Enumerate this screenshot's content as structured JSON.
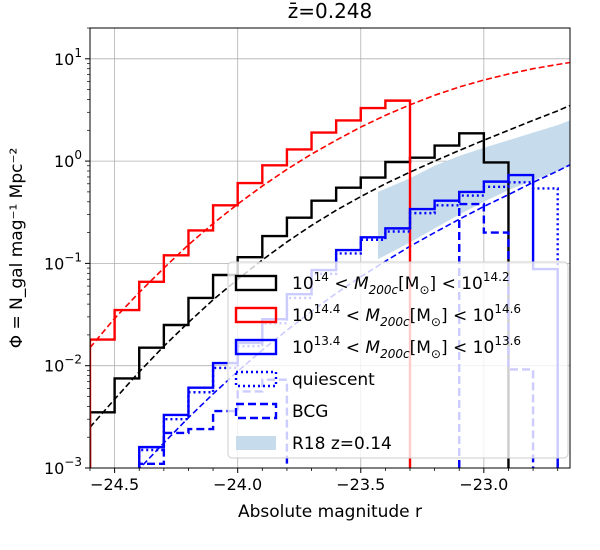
{
  "chart_data": {
    "type": "line",
    "title": "z̄=0.248",
    "xlabel": "Absolute magnitude r",
    "ylabel": "Φ = N_gal mag⁻¹ Mpc⁻²",
    "xlim": [
      -24.6,
      -22.65
    ],
    "ylim": [
      0.001,
      20
    ],
    "yscale": "log",
    "grid": true,
    "legend_position": "lower-right",
    "x_ticks": [
      {
        "value": -24.5,
        "label": "−24.5"
      },
      {
        "value": -24.0,
        "label": "−24.0"
      },
      {
        "value": -23.5,
        "label": "−23.5"
      },
      {
        "value": -23.0,
        "label": "−23.0"
      }
    ],
    "y_ticks": [
      {
        "value": 0.001,
        "base": "10",
        "exp": "−3"
      },
      {
        "value": 0.01,
        "base": "10",
        "exp": "−2"
      },
      {
        "value": 0.1,
        "base": "10",
        "exp": "−1"
      },
      {
        "value": 1,
        "base": "10",
        "exp": "0"
      },
      {
        "value": 10,
        "base": "10",
        "exp": "1"
      }
    ],
    "bin_edges": [
      -24.6,
      -24.5,
      -24.4,
      -24.3,
      -24.2,
      -24.1,
      -24.0,
      -23.9,
      -23.8,
      -23.7,
      -23.6,
      -23.5,
      -23.4,
      -23.3,
      -23.2,
      -23.1,
      -23.0,
      -22.9,
      -22.8,
      -22.7
    ],
    "series": [
      {
        "name": "10^14 < M_200c[M_⊙] < 10^14.2",
        "legend_label": {
          "pre": "10",
          "sup1": "14",
          "mid": " < M",
          "sub": "200c",
          "br": "[M",
          "sun": "⊙",
          "post": "] < 10",
          "sup2": "14.2"
        },
        "color": "#000000",
        "style": "solid-hist",
        "values": [
          0.0035,
          0.0075,
          0.015,
          0.025,
          0.046,
          0.077,
          0.115,
          0.185,
          0.28,
          0.41,
          0.55,
          0.69,
          0.98,
          1.08,
          1.42,
          1.87,
          0.97,
          null,
          null
        ],
        "drop_edge": -22.9
      },
      {
        "name": "10^14.4 < M_200c[M_⊙] < 10^14.6",
        "legend_label": {
          "pre": "10",
          "sup1": "14.4",
          "mid": " < M",
          "sub": "200c",
          "br": "[M",
          "sun": "⊙",
          "post": "] < 10",
          "sup2": "14.6"
        },
        "color": "#ff0000",
        "style": "solid-hist",
        "values": [
          0.018,
          0.035,
          0.066,
          0.12,
          0.21,
          0.37,
          0.61,
          0.91,
          1.3,
          1.9,
          2.5,
          3.3,
          3.9,
          null,
          null,
          null,
          null,
          null,
          null
        ],
        "drop_edge": -23.1
      },
      {
        "name": "10^13.4 < M_200c[M_⊙] < 10^13.6",
        "legend_label": {
          "pre": "10",
          "sup1": "13.4",
          "mid": " < M",
          "sub": "200c",
          "br": "[M",
          "sun": "⊙",
          "post": "] < 10",
          "sup2": "13.6"
        },
        "color": "#0000ff",
        "style": "solid-hist",
        "values": [
          null,
          null,
          0.0016,
          0.0033,
          0.0061,
          0.0106,
          0.0167,
          0.0285,
          0.05,
          0.086,
          0.135,
          0.18,
          0.22,
          0.34,
          0.41,
          0.5,
          0.63,
          0.73,
          0.088
        ],
        "drop_edge": -22.7
      },
      {
        "name": "quiescent",
        "color": "#0000ff",
        "style": "dotted-hist",
        "values": [
          null,
          null,
          0.0015,
          0.003,
          0.0055,
          0.0095,
          0.0155,
          0.026,
          0.046,
          0.079,
          0.125,
          0.17,
          0.205,
          0.31,
          0.37,
          0.46,
          0.56,
          0.62,
          0.54
        ],
        "drop_edge": -22.7
      },
      {
        "name": "BCG",
        "color": "#0000ff",
        "style": "dashed-hist",
        "values": [
          null,
          null,
          0.0011,
          0.0022,
          0.0024,
          0.0036,
          0.0056,
          0.0073,
          null,
          null,
          null,
          null,
          null,
          null,
          null,
          0.38,
          0.2,
          0.0092,
          null
        ],
        "drop_edge": -22.8
      }
    ],
    "fit_curves": [
      {
        "color": "#000000",
        "points": [
          [
            -24.6,
            0.0025
          ],
          [
            -24.5,
            0.0047
          ],
          [
            -24.4,
            0.0087
          ],
          [
            -24.3,
            0.0155
          ],
          [
            -24.2,
            0.0265
          ],
          [
            -24.1,
            0.044
          ],
          [
            -24.0,
            0.07
          ],
          [
            -23.9,
            0.108
          ],
          [
            -23.8,
            0.162
          ],
          [
            -23.7,
            0.235
          ],
          [
            -23.6,
            0.33
          ],
          [
            -23.5,
            0.45
          ],
          [
            -23.4,
            0.6
          ],
          [
            -23.3,
            0.78
          ],
          [
            -23.2,
            1.0
          ],
          [
            -23.1,
            1.27
          ],
          [
            -23.0,
            1.6
          ],
          [
            -22.9,
            2.0
          ],
          [
            -22.8,
            2.5
          ],
          [
            -22.7,
            3.1
          ],
          [
            -22.65,
            3.5
          ]
        ]
      },
      {
        "color": "#ff0000",
        "points": [
          [
            -24.6,
            0.015
          ],
          [
            -24.5,
            0.029
          ],
          [
            -24.4,
            0.052
          ],
          [
            -24.3,
            0.09
          ],
          [
            -24.2,
            0.152
          ],
          [
            -24.1,
            0.245
          ],
          [
            -24.0,
            0.38
          ],
          [
            -23.9,
            0.57
          ],
          [
            -23.8,
            0.83
          ],
          [
            -23.7,
            1.17
          ],
          [
            -23.6,
            1.6
          ],
          [
            -23.5,
            2.15
          ],
          [
            -23.4,
            2.8
          ],
          [
            -23.3,
            3.55
          ],
          [
            -23.2,
            4.4
          ],
          [
            -23.1,
            5.3
          ],
          [
            -23.0,
            6.2
          ],
          [
            -22.9,
            7.1
          ],
          [
            -22.8,
            8.0
          ],
          [
            -22.7,
            8.8
          ],
          [
            -22.65,
            9.2
          ]
        ]
      },
      {
        "color": "#0000ff",
        "points": [
          [
            -24.6,
            0.00027
          ],
          [
            -24.5,
            0.00052
          ],
          [
            -24.4,
            0.00098
          ],
          [
            -24.3,
            0.00176
          ],
          [
            -24.2,
            0.0031
          ],
          [
            -24.1,
            0.0053
          ],
          [
            -24.0,
            0.0088
          ],
          [
            -23.9,
            0.0142
          ],
          [
            -23.8,
            0.0222
          ],
          [
            -23.7,
            0.034
          ],
          [
            -23.6,
            0.051
          ],
          [
            -23.5,
            0.074
          ],
          [
            -23.4,
            0.105
          ],
          [
            -23.3,
            0.147
          ],
          [
            -23.2,
            0.2
          ],
          [
            -23.1,
            0.27
          ],
          [
            -23.0,
            0.36
          ],
          [
            -22.9,
            0.47
          ],
          [
            -22.8,
            0.62
          ],
          [
            -22.7,
            0.8
          ],
          [
            -22.65,
            0.92
          ]
        ]
      }
    ],
    "band": {
      "name": "R18 z=0.14",
      "color": "#c6dcec",
      "upper": [
        [
          -23.43,
          0.5
        ],
        [
          -23.3,
          0.68
        ],
        [
          -23.2,
          0.9
        ],
        [
          -23.1,
          1.12
        ],
        [
          -23.0,
          1.35
        ],
        [
          -22.9,
          1.6
        ],
        [
          -22.8,
          1.9
        ],
        [
          -22.7,
          2.25
        ],
        [
          -22.65,
          2.5
        ]
      ],
      "lower": [
        [
          -23.43,
          0.11
        ],
        [
          -23.3,
          0.16
        ],
        [
          -23.2,
          0.22
        ],
        [
          -23.1,
          0.3
        ],
        [
          -23.0,
          0.4
        ],
        [
          -22.9,
          0.52
        ],
        [
          -22.8,
          0.65
        ],
        [
          -22.7,
          0.8
        ],
        [
          -22.65,
          0.9
        ]
      ]
    }
  }
}
